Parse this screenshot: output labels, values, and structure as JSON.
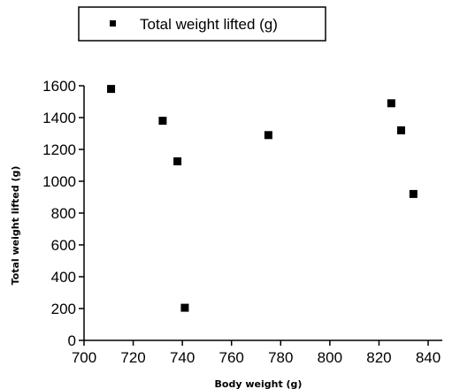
{
  "chart_data": {
    "type": "scatter",
    "series": [
      {
        "name": "Total weight lifted (g)",
        "x": [
          711,
          732,
          738,
          741,
          775,
          825,
          829,
          834
        ],
        "y": [
          1580,
          1380,
          1125,
          205,
          1290,
          1490,
          1320,
          920
        ]
      }
    ],
    "xlabel": "Body weight (g)",
    "ylabel": "Total weight lifted (g)",
    "xlim": [
      700,
      840
    ],
    "ylim": [
      0,
      1600
    ],
    "xticks": [
      700,
      720,
      740,
      760,
      780,
      800,
      820,
      840
    ],
    "yticks": [
      0,
      200,
      400,
      600,
      800,
      1000,
      1200,
      1400,
      1600
    ],
    "grid": false,
    "legend_position": "top-center",
    "marker": "square",
    "marker_color": "#000000"
  }
}
